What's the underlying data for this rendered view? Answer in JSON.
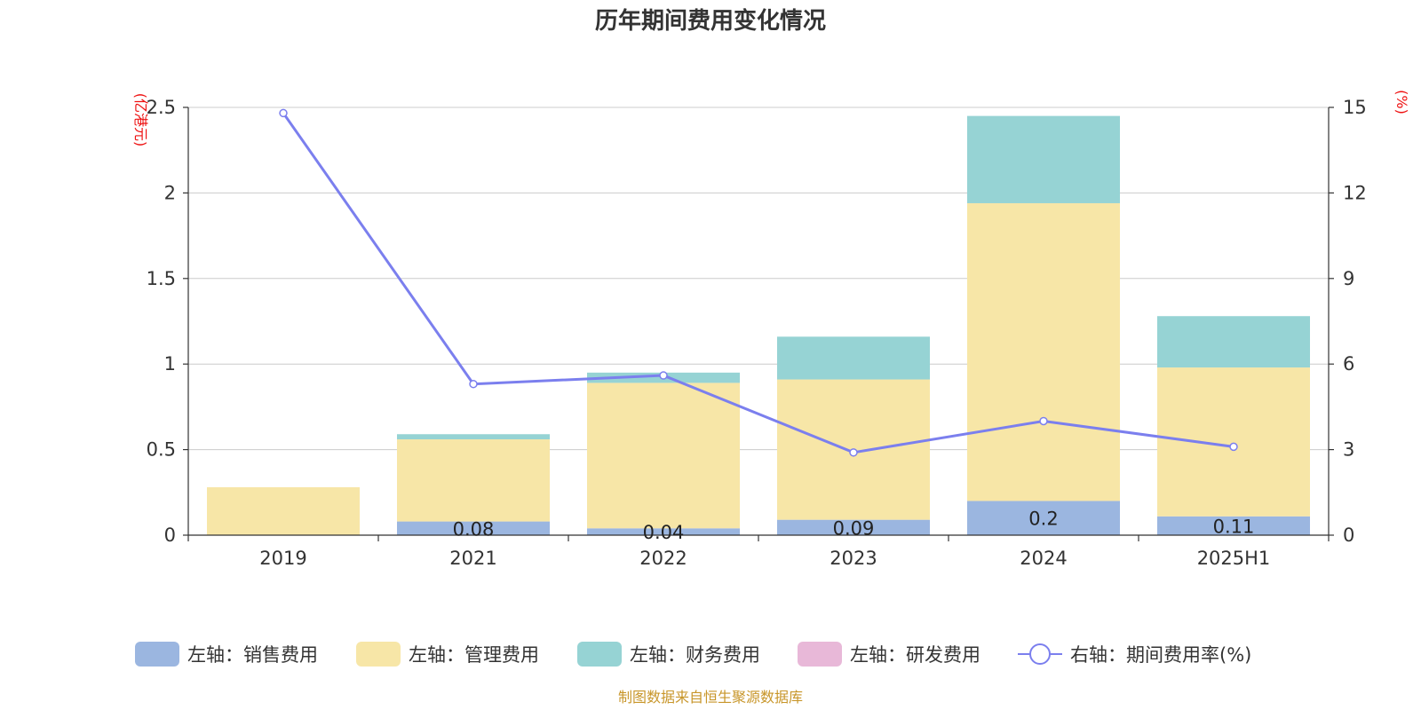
{
  "chart_data": {
    "type": "bar",
    "stacked": true,
    "title": "历年期间费用变化情况",
    "categories": [
      "2019",
      "2021",
      "2022",
      "2023",
      "2024",
      "2025H1"
    ],
    "left_axis": {
      "unit": "(亿港元)",
      "ylim": [
        0,
        2.5
      ],
      "ticks": [
        "0",
        "0.5",
        "1",
        "1.5",
        "2",
        "2.5"
      ],
      "tick_values": [
        0,
        0.5,
        1,
        1.5,
        2,
        2.5
      ]
    },
    "right_axis": {
      "unit": "(%)",
      "ylim": [
        0,
        15
      ],
      "ticks": [
        "0",
        "3",
        "6",
        "9",
        "12",
        "15"
      ],
      "tick_values": [
        0,
        3,
        6,
        9,
        12,
        15
      ]
    },
    "grid": true,
    "legend_position": "bottom",
    "series": [
      {
        "name": "左轴：销售费用",
        "axis": "left",
        "kind": "bar",
        "color": "#9bb6e0",
        "values": [
          0,
          0.08,
          0.04,
          0.09,
          0.2,
          0.11
        ],
        "labels": [
          "",
          "0.08",
          "0.04",
          "0.09",
          "0.2",
          "0.11"
        ]
      },
      {
        "name": "左轴：管理费用",
        "axis": "left",
        "kind": "bar",
        "color": "#f7e6a7",
        "values": [
          0.28,
          0.48,
          0.85,
          0.82,
          1.74,
          0.87
        ]
      },
      {
        "name": "左轴：财务费用",
        "axis": "left",
        "kind": "bar",
        "color": "#96d3d4",
        "values": [
          0,
          0.03,
          0.06,
          0.25,
          0.51,
          0.3
        ]
      },
      {
        "name": "左轴：研发费用",
        "axis": "left",
        "kind": "bar",
        "color": "#e8b8d8",
        "values": [
          0,
          0,
          0,
          0,
          0,
          0
        ]
      },
      {
        "name": "右轴：期间费用率(%)",
        "axis": "right",
        "kind": "line",
        "color": "#7b7fee",
        "values": [
          14.8,
          5.3,
          5.6,
          2.9,
          4.0,
          3.1
        ]
      }
    ],
    "source": "制图数据来自恒生聚源数据库"
  }
}
